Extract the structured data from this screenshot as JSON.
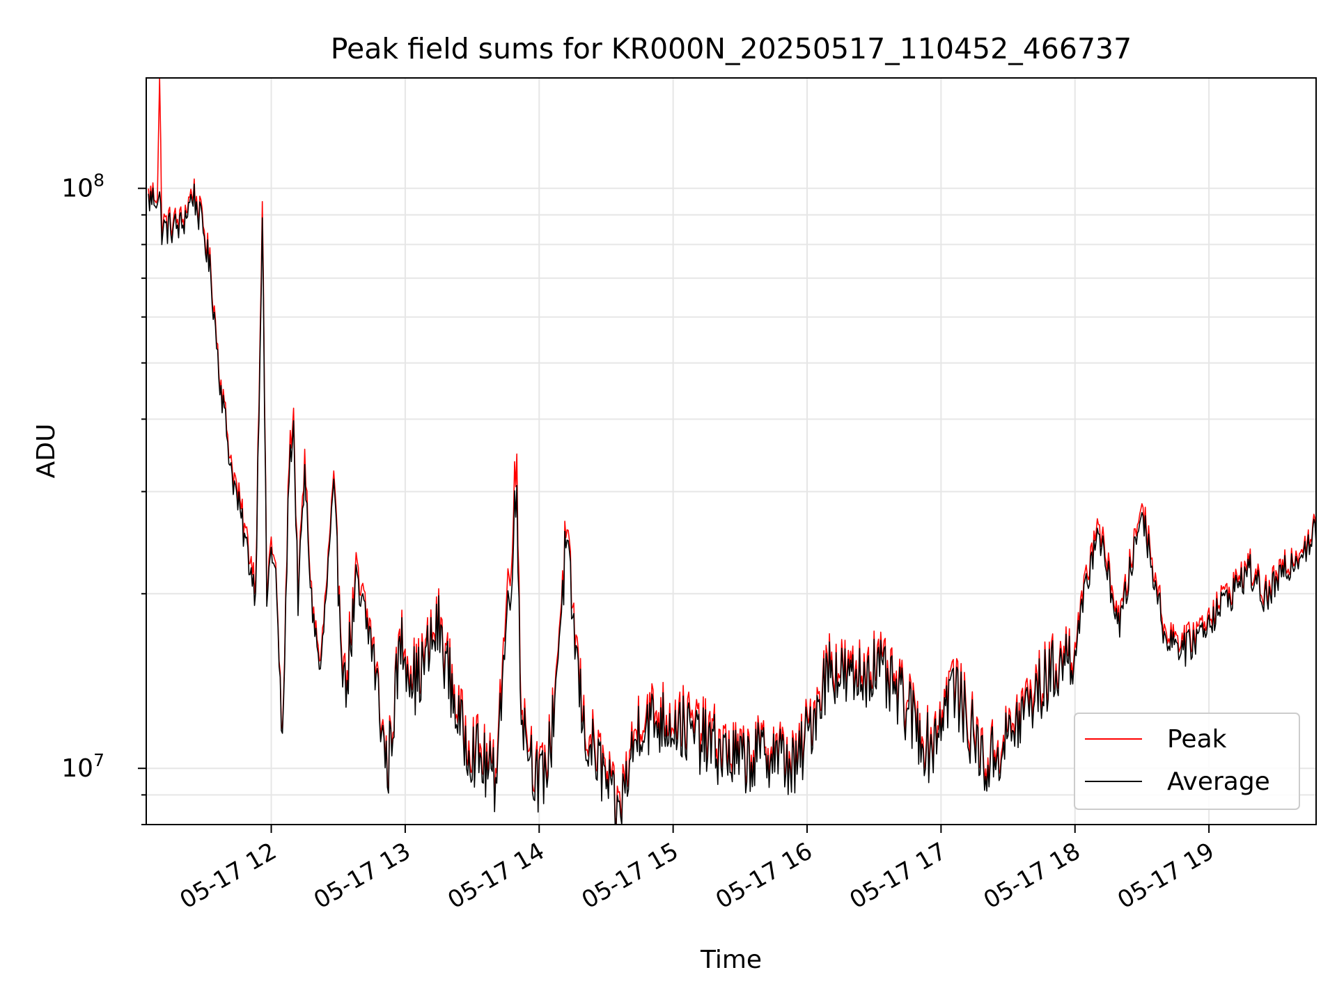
{
  "chart_data": {
    "type": "line",
    "title": "Peak field sums for KR000N_20250517_110452_466737",
    "xlabel": "Time",
    "ylabel": "ADU",
    "y_scale": "log",
    "ylim": [
      8000000,
      155000000
    ],
    "xlim": [
      "2025-05-17 11:04",
      "2025-05-17 19:48"
    ],
    "x_tick_labels": [
      "05-17 12",
      "05-17 13",
      "05-17 14",
      "05-17 15",
      "05-17 16",
      "05-17 17",
      "05-17 18",
      "05-17 19"
    ],
    "y_tick_labels": [
      {
        "base": "10",
        "exp": "7",
        "value": 10000000
      },
      {
        "base": "10",
        "exp": "8",
        "value": 100000000
      }
    ],
    "grid": true,
    "legend_position": "lower right",
    "series": [
      {
        "name": "Peak",
        "color": "#ff0000",
        "points": [
          [
            "2025-05-17 11:05",
            97000000
          ],
          [
            "2025-05-17 11:09",
            99000000
          ],
          [
            "2025-05-17 11:10",
            155000000
          ],
          [
            "2025-05-17 11:11",
            87000000
          ],
          [
            "2025-05-17 11:20",
            88000000
          ],
          [
            "2025-05-17 11:25",
            100000000
          ],
          [
            "2025-05-17 11:30",
            85000000
          ],
          [
            "2025-05-17 11:33",
            72000000
          ],
          [
            "2025-05-17 11:37",
            48000000
          ],
          [
            "2025-05-17 11:42",
            34000000
          ],
          [
            "2025-05-17 11:48",
            26000000
          ],
          [
            "2025-05-17 11:53",
            21000000
          ],
          [
            "2025-05-17 11:56",
            96000000
          ],
          [
            "2025-05-17 11:58",
            20000000
          ],
          [
            "2025-05-17 12:00",
            25000000
          ],
          [
            "2025-05-17 12:02",
            22000000
          ],
          [
            "2025-05-17 12:05",
            11000000
          ],
          [
            "2025-05-17 12:08",
            35000000
          ],
          [
            "2025-05-17 12:10",
            41000000
          ],
          [
            "2025-05-17 12:12",
            20000000
          ],
          [
            "2025-05-17 12:15",
            34000000
          ],
          [
            "2025-05-17 12:18",
            20000000
          ],
          [
            "2025-05-17 12:22",
            15000000
          ],
          [
            "2025-05-17 12:28",
            31000000
          ],
          [
            "2025-05-17 12:33",
            14000000
          ],
          [
            "2025-05-17 12:38",
            21000000
          ],
          [
            "2025-05-17 12:45",
            17000000
          ],
          [
            "2025-05-17 12:52",
            10000000
          ],
          [
            "2025-05-17 12:58",
            17000000
          ],
          [
            "2025-05-17 13:05",
            14500000
          ],
          [
            "2025-05-17 13:15",
            18000000
          ],
          [
            "2025-05-17 13:25",
            12000000
          ],
          [
            "2025-05-17 13:40",
            9800000
          ],
          [
            "2025-05-17 13:50",
            34000000
          ],
          [
            "2025-05-17 13:52",
            13000000
          ],
          [
            "2025-05-17 14:00",
            9500000
          ],
          [
            "2025-05-17 14:05",
            11000000
          ],
          [
            "2025-05-17 14:12",
            25000000
          ],
          [
            "2025-05-17 14:20",
            12000000
          ],
          [
            "2025-05-17 14:30",
            9800000
          ],
          [
            "2025-05-17 14:35",
            8400000
          ],
          [
            "2025-05-17 14:45",
            12500000
          ],
          [
            "2025-05-17 15:00",
            12500000
          ],
          [
            "2025-05-17 15:15",
            11500000
          ],
          [
            "2025-05-17 15:30",
            10500000
          ],
          [
            "2025-05-17 15:45",
            11000000
          ],
          [
            "2025-05-17 15:55",
            10200000
          ],
          [
            "2025-05-17 16:10",
            15500000
          ],
          [
            "2025-05-17 16:20",
            14500000
          ],
          [
            "2025-05-17 16:30",
            15500000
          ],
          [
            "2025-05-17 16:45",
            13000000
          ],
          [
            "2025-05-17 16:55",
            11000000
          ],
          [
            "2025-05-17 17:05",
            14500000
          ],
          [
            "2025-05-17 17:20",
            10300000
          ],
          [
            "2025-05-17 17:30",
            11500000
          ],
          [
            "2025-05-17 17:40",
            13500000
          ],
          [
            "2025-05-17 17:50",
            15000000
          ],
          [
            "2025-05-17 18:00",
            16500000
          ],
          [
            "2025-05-17 18:10",
            27000000
          ],
          [
            "2025-05-17 18:20",
            18000000
          ],
          [
            "2025-05-17 18:30",
            29000000
          ],
          [
            "2025-05-17 18:40",
            17500000
          ],
          [
            "2025-05-17 18:50",
            16500000
          ],
          [
            "2025-05-17 19:00",
            18500000
          ],
          [
            "2025-05-17 19:10",
            20500000
          ],
          [
            "2025-05-17 19:18",
            22500000
          ],
          [
            "2025-05-17 19:25",
            20000000
          ],
          [
            "2025-05-17 19:35",
            22500000
          ],
          [
            "2025-05-17 19:40",
            24000000
          ],
          [
            "2025-05-17 19:45",
            25000000
          ],
          [
            "2025-05-17 19:48",
            26000000
          ]
        ]
      },
      {
        "name": "Average",
        "color": "#000000",
        "points": [
          [
            "2025-05-17 11:05",
            95000000
          ],
          [
            "2025-05-17 11:09",
            97000000
          ],
          [
            "2025-05-17 11:10",
            96000000
          ],
          [
            "2025-05-17 11:11",
            85000000
          ],
          [
            "2025-05-17 11:20",
            86000000
          ],
          [
            "2025-05-17 11:25",
            98000000
          ],
          [
            "2025-05-17 11:30",
            83000000
          ],
          [
            "2025-05-17 11:33",
            70000000
          ],
          [
            "2025-05-17 11:37",
            47000000
          ],
          [
            "2025-05-17 11:42",
            33000000
          ],
          [
            "2025-05-17 11:48",
            25000000
          ],
          [
            "2025-05-17 11:53",
            20000000
          ],
          [
            "2025-05-17 11:56",
            90000000
          ],
          [
            "2025-05-17 11:58",
            19500000
          ],
          [
            "2025-05-17 12:00",
            24000000
          ],
          [
            "2025-05-17 12:02",
            21500000
          ],
          [
            "2025-05-17 12:05",
            10800000
          ],
          [
            "2025-05-17 12:08",
            33000000
          ],
          [
            "2025-05-17 12:10",
            39000000
          ],
          [
            "2025-05-17 12:12",
            19500000
          ],
          [
            "2025-05-17 12:15",
            32000000
          ],
          [
            "2025-05-17 12:18",
            19500000
          ],
          [
            "2025-05-17 12:22",
            14500000
          ],
          [
            "2025-05-17 12:28",
            30000000
          ],
          [
            "2025-05-17 12:33",
            13500000
          ],
          [
            "2025-05-17 12:38",
            20000000
          ],
          [
            "2025-05-17 12:45",
            16500000
          ],
          [
            "2025-05-17 12:52",
            9800000
          ],
          [
            "2025-05-17 12:58",
            16500000
          ],
          [
            "2025-05-17 13:05",
            14000000
          ],
          [
            "2025-05-17 13:15",
            17500000
          ],
          [
            "2025-05-17 13:25",
            11500000
          ],
          [
            "2025-05-17 13:40",
            9500000
          ],
          [
            "2025-05-17 13:50",
            30000000
          ],
          [
            "2025-05-17 13:52",
            12500000
          ],
          [
            "2025-05-17 14:00",
            9200000
          ],
          [
            "2025-05-17 14:05",
            10700000
          ],
          [
            "2025-05-17 14:12",
            24000000
          ],
          [
            "2025-05-17 14:20",
            11500000
          ],
          [
            "2025-05-17 14:30",
            9500000
          ],
          [
            "2025-05-17 14:35",
            8100000
          ],
          [
            "2025-05-17 14:45",
            12000000
          ],
          [
            "2025-05-17 15:00",
            12000000
          ],
          [
            "2025-05-17 15:15",
            11000000
          ],
          [
            "2025-05-17 15:30",
            10200000
          ],
          [
            "2025-05-17 15:45",
            10700000
          ],
          [
            "2025-05-17 15:55",
            9900000
          ],
          [
            "2025-05-17 16:10",
            15000000
          ],
          [
            "2025-05-17 16:20",
            14000000
          ],
          [
            "2025-05-17 16:30",
            15000000
          ],
          [
            "2025-05-17 16:45",
            12600000
          ],
          [
            "2025-05-17 16:55",
            10700000
          ],
          [
            "2025-05-17 17:05",
            14000000
          ],
          [
            "2025-05-17 17:20",
            10000000
          ],
          [
            "2025-05-17 17:30",
            11200000
          ],
          [
            "2025-05-17 17:40",
            13000000
          ],
          [
            "2025-05-17 17:50",
            14600000
          ],
          [
            "2025-05-17 18:00",
            16000000
          ],
          [
            "2025-05-17 18:10",
            26000000
          ],
          [
            "2025-05-17 18:20",
            17500000
          ],
          [
            "2025-05-17 18:30",
            28000000
          ],
          [
            "2025-05-17 18:40",
            17000000
          ],
          [
            "2025-05-17 18:50",
            16000000
          ],
          [
            "2025-05-17 19:00",
            18000000
          ],
          [
            "2025-05-17 19:10",
            20000000
          ],
          [
            "2025-05-17 19:18",
            22000000
          ],
          [
            "2025-05-17 19:25",
            19500000
          ],
          [
            "2025-05-17 19:35",
            22000000
          ],
          [
            "2025-05-17 19:40",
            23500000
          ],
          [
            "2025-05-17 19:45",
            24500000
          ],
          [
            "2025-05-17 19:48",
            25500000
          ]
        ]
      }
    ]
  }
}
